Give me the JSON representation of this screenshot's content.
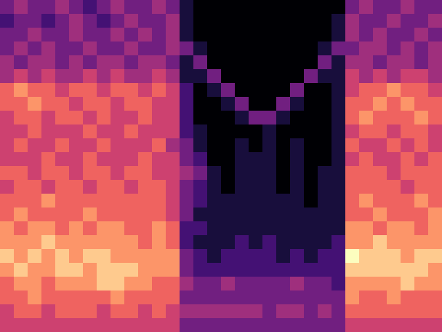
{
  "chart_data": {
    "type": "heatmap",
    "color": "magma",
    "tick_labels": false,
    "cells": [
      [
        3,
        4,
        3,
        3,
        4,
        3,
        2,
        3,
        4,
        3,
        3,
        4,
        3,
        1,
        0,
        0,
        0,
        0,
        0,
        0,
        0,
        0,
        0,
        0,
        0,
        3,
        4,
        3,
        3,
        4,
        3,
        3
      ],
      [
        2,
        3,
        3,
        2,
        3,
        4,
        3,
        2,
        3,
        4,
        3,
        3,
        4,
        1,
        0,
        0,
        0,
        0,
        0,
        0,
        0,
        0,
        0,
        0,
        1,
        4,
        3,
        3,
        4,
        3,
        3,
        4
      ],
      [
        3,
        3,
        4,
        3,
        3,
        4,
        3,
        3,
        4,
        3,
        4,
        3,
        4,
        1,
        0,
        0,
        0,
        0,
        0,
        0,
        0,
        0,
        0,
        0,
        1,
        4,
        3,
        4,
        3,
        3,
        4,
        3
      ],
      [
        3,
        4,
        3,
        4,
        3,
        3,
        4,
        3,
        3,
        4,
        3,
        3,
        4,
        3,
        1,
        0,
        0,
        0,
        0,
        0,
        0,
        0,
        0,
        1,
        3,
        3,
        4,
        4,
        3,
        4,
        3,
        4
      ],
      [
        4,
        3,
        4,
        4,
        3,
        4,
        3,
        4,
        4,
        3,
        4,
        4,
        3,
        1,
        3,
        0,
        0,
        0,
        0,
        0,
        0,
        0,
        0,
        3,
        1,
        4,
        4,
        3,
        4,
        4,
        3,
        4
      ],
      [
        4,
        5,
        4,
        5,
        4,
        4,
        5,
        4,
        5,
        4,
        4,
        5,
        4,
        1,
        1,
        3,
        0,
        0,
        0,
        0,
        0,
        0,
        3,
        1,
        1,
        5,
        4,
        5,
        4,
        5,
        5,
        4
      ],
      [
        6,
        7,
        6,
        6,
        5,
        6,
        6,
        5,
        6,
        6,
        5,
        6,
        5,
        2,
        0,
        1,
        3,
        0,
        0,
        0,
        0,
        3,
        0,
        0,
        1,
        5,
        6,
        6,
        7,
        6,
        6,
        5
      ],
      [
        6,
        6,
        7,
        6,
        6,
        5,
        6,
        6,
        5,
        6,
        6,
        5,
        5,
        2,
        0,
        0,
        1,
        3,
        0,
        0,
        3,
        1,
        0,
        0,
        1,
        6,
        6,
        7,
        6,
        7,
        6,
        6
      ],
      [
        5,
        6,
        6,
        5,
        6,
        6,
        5,
        6,
        5,
        5,
        6,
        5,
        5,
        2,
        0,
        0,
        0,
        1,
        3,
        3,
        1,
        0,
        0,
        0,
        1,
        6,
        7,
        6,
        6,
        6,
        7,
        6
      ],
      [
        5,
        5,
        6,
        5,
        5,
        5,
        6,
        5,
        5,
        6,
        5,
        5,
        5,
        2,
        1,
        0,
        0,
        0,
        0,
        1,
        0,
        0,
        0,
        0,
        1,
        5,
        6,
        6,
        5,
        6,
        6,
        5
      ],
      [
        5,
        6,
        5,
        5,
        6,
        5,
        5,
        6,
        5,
        5,
        5,
        6,
        4,
        3,
        1,
        0,
        0,
        1,
        0,
        1,
        0,
        1,
        0,
        0,
        1,
        6,
        5,
        5,
        6,
        5,
        6,
        5
      ],
      [
        5,
        5,
        5,
        6,
        5,
        5,
        6,
        5,
        5,
        5,
        6,
        5,
        5,
        3,
        2,
        0,
        0,
        1,
        1,
        1,
        0,
        1,
        0,
        0,
        1,
        5,
        6,
        5,
        5,
        6,
        5,
        6
      ],
      [
        6,
        6,
        5,
        6,
        6,
        5,
        6,
        6,
        5,
        6,
        6,
        5,
        5,
        4,
        3,
        1,
        0,
        1,
        1,
        1,
        0,
        1,
        0,
        1,
        1,
        6,
        6,
        6,
        5,
        6,
        6,
        6
      ],
      [
        5,
        6,
        6,
        5,
        6,
        6,
        5,
        6,
        6,
        5,
        6,
        6,
        5,
        3,
        2,
        1,
        0,
        1,
        1,
        1,
        0,
        1,
        0,
        1,
        1,
        6,
        6,
        6,
        6,
        5,
        6,
        6
      ],
      [
        6,
        6,
        6,
        7,
        6,
        6,
        6,
        6,
        6,
        6,
        6,
        6,
        5,
        3,
        2,
        1,
        1,
        1,
        1,
        1,
        1,
        1,
        0,
        1,
        1,
        6,
        7,
        6,
        6,
        6,
        7,
        6
      ],
      [
        6,
        7,
        6,
        6,
        6,
        6,
        7,
        6,
        6,
        6,
        6,
        6,
        5,
        3,
        1,
        1,
        1,
        1,
        1,
        1,
        1,
        1,
        1,
        1,
        1,
        6,
        6,
        7,
        6,
        6,
        6,
        7
      ],
      [
        7,
        6,
        7,
        7,
        6,
        7,
        6,
        7,
        7,
        6,
        6,
        7,
        6,
        2,
        2,
        1,
        1,
        1,
        1,
        1,
        1,
        1,
        1,
        1,
        1,
        7,
        7,
        6,
        7,
        7,
        6,
        7
      ],
      [
        7,
        7,
        7,
        8,
        7,
        7,
        7,
        7,
        7,
        7,
        6,
        7,
        6,
        2,
        1,
        1,
        1,
        2,
        1,
        2,
        1,
        1,
        1,
        1,
        2,
        7,
        7,
        8,
        7,
        7,
        7,
        7
      ],
      [
        8,
        7,
        8,
        7,
        8,
        7,
        8,
        8,
        7,
        7,
        7,
        7,
        7,
        3,
        2,
        1,
        2,
        2,
        2,
        2,
        1,
        2,
        1,
        2,
        2,
        9,
        8,
        8,
        8,
        7,
        8,
        8
      ],
      [
        7,
        8,
        7,
        7,
        8,
        8,
        7,
        8,
        8,
        8,
        7,
        7,
        7,
        3,
        2,
        2,
        2,
        2,
        2,
        2,
        2,
        2,
        2,
        2,
        2,
        8,
        8,
        8,
        8,
        8,
        8,
        7
      ],
      [
        6,
        7,
        7,
        6,
        7,
        7,
        7,
        8,
        8,
        7,
        7,
        6,
        6,
        4,
        3,
        3,
        4,
        3,
        3,
        3,
        3,
        4,
        3,
        3,
        2,
        7,
        7,
        7,
        7,
        8,
        7,
        7
      ],
      [
        6,
        6,
        7,
        6,
        6,
        6,
        6,
        6,
        7,
        6,
        6,
        6,
        6,
        3,
        3,
        3,
        3,
        3,
        3,
        3,
        3,
        3,
        3,
        3,
        3,
        7,
        6,
        6,
        7,
        6,
        6,
        6
      ],
      [
        5,
        6,
        6,
        5,
        6,
        6,
        6,
        5,
        6,
        6,
        5,
        6,
        5,
        4,
        4,
        4,
        4,
        4,
        4,
        3,
        4,
        4,
        3,
        4,
        3,
        6,
        6,
        6,
        6,
        6,
        6,
        6
      ],
      [
        5,
        5,
        5,
        5,
        5,
        5,
        5,
        5,
        5,
        5,
        5,
        5,
        5,
        3,
        3,
        3,
        3,
        3,
        3,
        3,
        3,
        3,
        3,
        3,
        3,
        5,
        5,
        5,
        5,
        5,
        5,
        5
      ]
    ]
  }
}
